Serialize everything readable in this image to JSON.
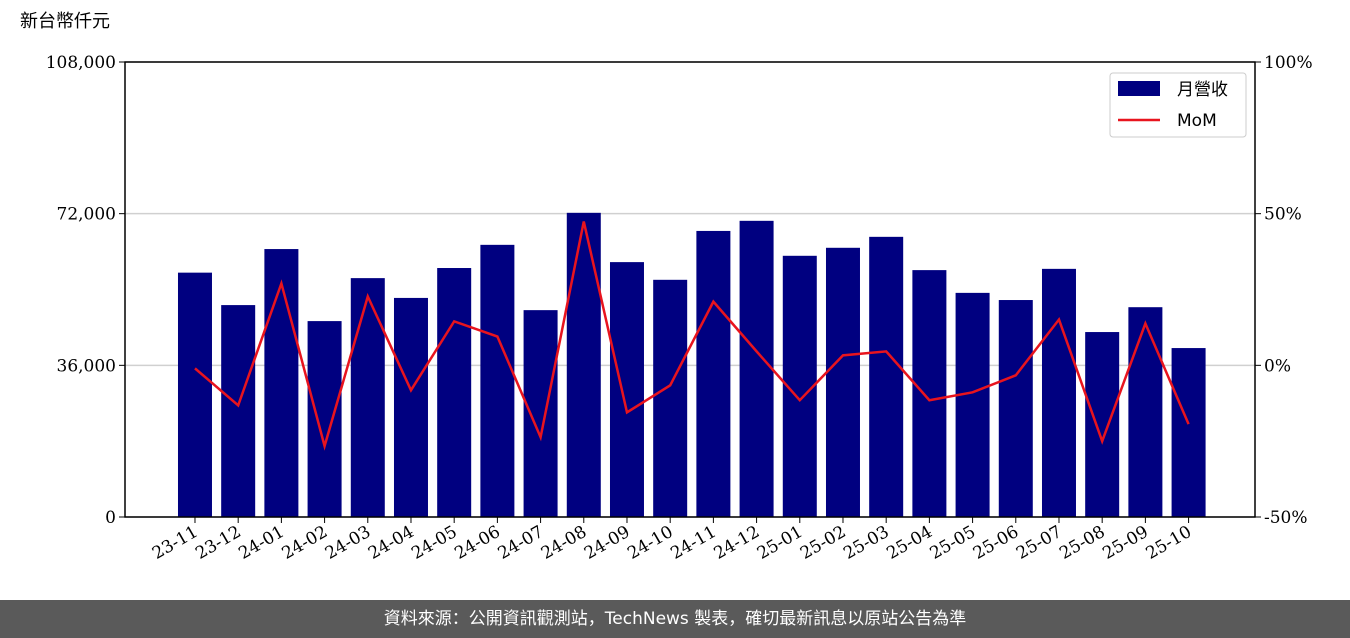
{
  "chart_data": {
    "type": "bar-line",
    "ylabel": "新台幣仟元",
    "categories": [
      "23-11",
      "23-12",
      "24-01",
      "24-02",
      "24-03",
      "24-04",
      "24-05",
      "24-06",
      "24-07",
      "24-08",
      "24-09",
      "24-10",
      "24-11",
      "24-12",
      "25-01",
      "25-02",
      "25-03",
      "25-04",
      "25-05",
      "25-06",
      "25-07",
      "25-08",
      "25-09",
      "25-10"
    ],
    "series": [
      {
        "name": "月營收",
        "type": "bar",
        "color": "#000080",
        "values": [
          58000,
          50300,
          63600,
          46500,
          56700,
          52000,
          59100,
          64600,
          49100,
          72200,
          60500,
          56300,
          67900,
          70300,
          62000,
          63900,
          66500,
          58600,
          53200,
          51500,
          58900,
          43900,
          49800,
          40100
        ]
      },
      {
        "name": "MoM",
        "type": "line",
        "axis": "y2",
        "color": "#e8141e",
        "values": [
          -1,
          -13.2,
          27,
          -26.6,
          22.7,
          -8.2,
          14.5,
          9.5,
          -23.7,
          47.4,
          -15.5,
          -6.6,
          21,
          4.6,
          -11.5,
          3.3,
          4.6,
          -11.5,
          -8.9,
          -3.3,
          15.1,
          -25,
          13.8,
          -19.4
        ]
      }
    ],
    "ylim": [
      0,
      108000
    ],
    "yticks": [
      0,
      {
        "value": 36000,
        "label": "36,000"
      },
      {
        "value": 72000,
        "label": "72,000"
      },
      {
        "value": 108000,
        "label": "108,000"
      }
    ],
    "y2lim": [
      -50,
      100
    ],
    "y2ticks": [
      {
        "value": -50,
        "label": "-50%"
      },
      {
        "value": 0,
        "label": "0%"
      },
      {
        "value": 50,
        "label": "50%"
      },
      {
        "value": 100,
        "label": "100%"
      }
    ],
    "grid": true,
    "legend": "upper right"
  },
  "footer": "資料來源：公開資訊觀測站，TechNews 製表，確切最新訊息以原站公告為準"
}
